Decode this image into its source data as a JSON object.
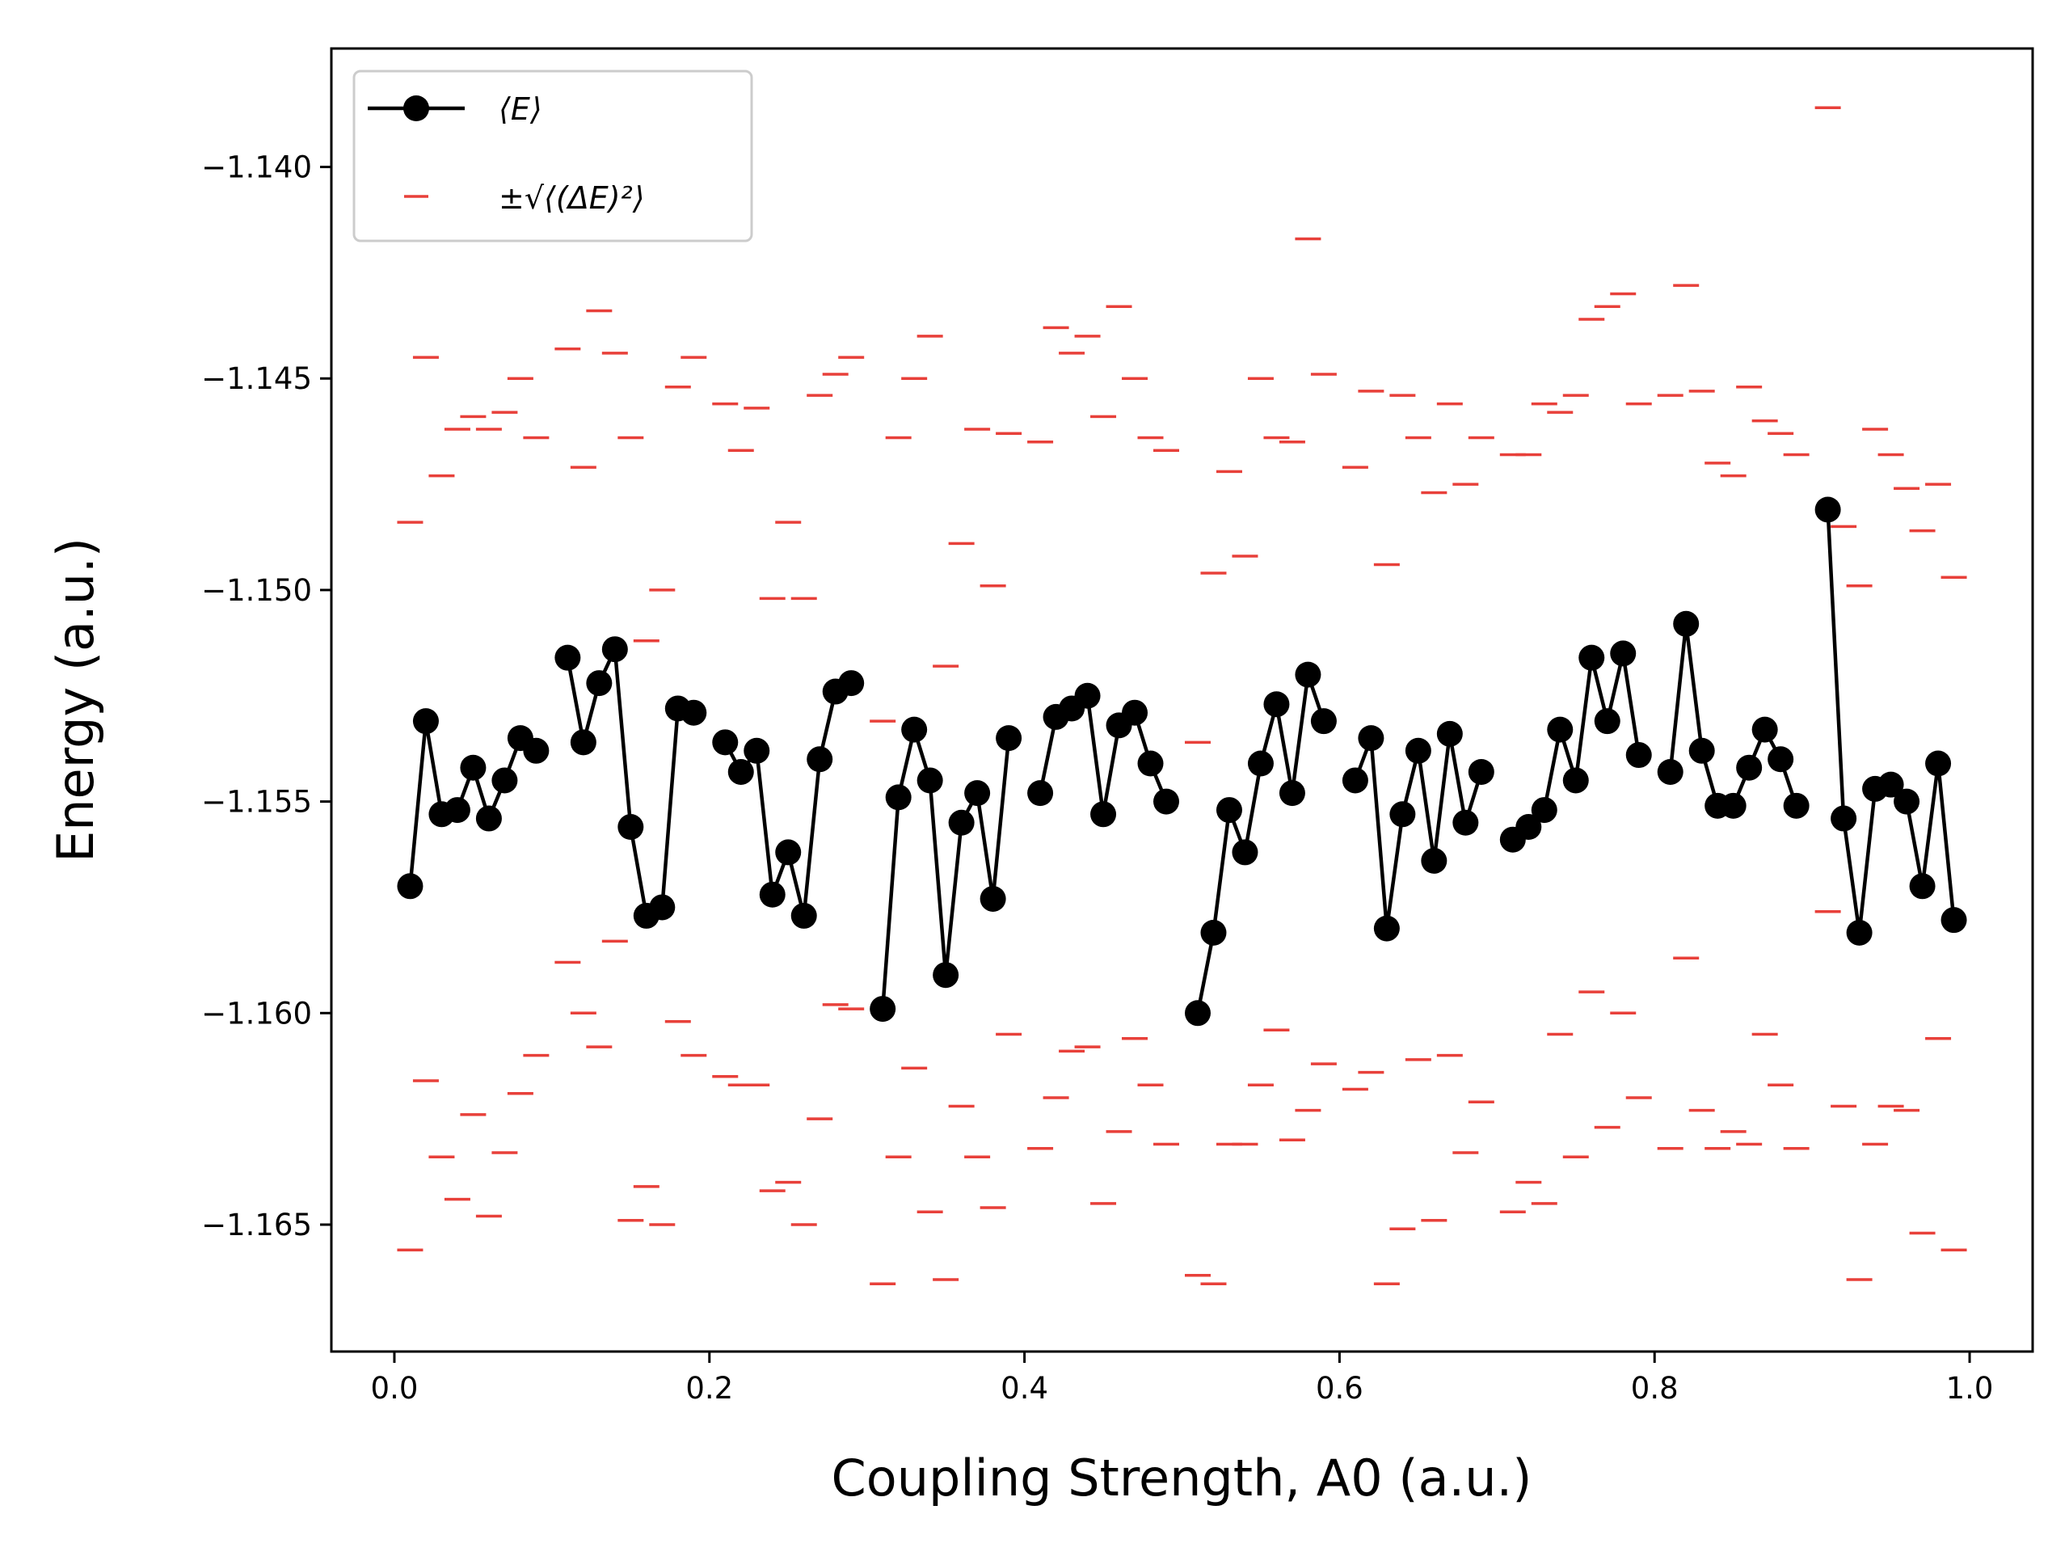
{
  "chart_data": {
    "type": "line",
    "xlabel": "Coupling Strength, A0 (a.u.)",
    "ylabel": "Energy (a.u.)",
    "xlim": [
      -0.04,
      1.04
    ],
    "ylim": [
      -1.168,
      -1.1372
    ],
    "xticks": [
      0.0,
      0.2,
      0.4,
      0.6,
      0.8,
      1.0
    ],
    "xtick_labels": [
      "0.0",
      "0.2",
      "0.4",
      "0.6",
      "0.8",
      "1.0"
    ],
    "yticks": [
      -1.14,
      -1.145,
      -1.15,
      -1.155,
      -1.16,
      -1.165
    ],
    "ytick_labels": [
      "−1.140",
      "−1.145",
      "−1.150",
      "−1.155",
      "−1.160",
      "−1.165"
    ],
    "grid": false,
    "legend_position": "top-left",
    "colors": {
      "mean": "#000000",
      "band": "#e8403a"
    },
    "series": [
      {
        "name": "⟨E⟩",
        "style": "line-with-circle-markers",
        "points": [
          [
            0.01,
            -1.157
          ],
          [
            0.02,
            -1.1531
          ],
          [
            0.03,
            -1.1553
          ],
          [
            0.04,
            -1.1552
          ],
          [
            0.05,
            -1.1542
          ],
          [
            0.06,
            -1.1554
          ],
          [
            0.07,
            -1.1545
          ],
          [
            0.08,
            -1.1535
          ],
          [
            0.09,
            -1.1538
          ],
          [
            0.11,
            -1.1516
          ],
          [
            0.12,
            -1.1536
          ],
          [
            0.13,
            -1.1522
          ],
          [
            0.14,
            -1.1514
          ],
          [
            0.15,
            -1.1556
          ],
          [
            0.16,
            -1.1577
          ],
          [
            0.17,
            -1.1575
          ],
          [
            0.18,
            -1.1528
          ],
          [
            0.19,
            -1.1529
          ],
          [
            0.21,
            -1.1536
          ],
          [
            0.22,
            -1.1543
          ],
          [
            0.23,
            -1.1538
          ],
          [
            0.24,
            -1.1572
          ],
          [
            0.25,
            -1.1562
          ],
          [
            0.26,
            -1.1577
          ],
          [
            0.27,
            -1.154
          ],
          [
            0.28,
            -1.1524
          ],
          [
            0.29,
            -1.1522
          ],
          [
            0.31,
            -1.1599
          ],
          [
            0.32,
            -1.1549
          ],
          [
            0.33,
            -1.1533
          ],
          [
            0.34,
            -1.1545
          ],
          [
            0.35,
            -1.1591
          ],
          [
            0.36,
            -1.1555
          ],
          [
            0.37,
            -1.1548
          ],
          [
            0.38,
            -1.1573
          ],
          [
            0.39,
            -1.1535
          ],
          [
            0.41,
            -1.1548
          ],
          [
            0.42,
            -1.153
          ],
          [
            0.43,
            -1.1528
          ],
          [
            0.44,
            -1.1525
          ],
          [
            0.45,
            -1.1553
          ],
          [
            0.46,
            -1.1532
          ],
          [
            0.47,
            -1.1529
          ],
          [
            0.48,
            -1.1541
          ],
          [
            0.49,
            -1.155
          ],
          [
            0.51,
            -1.16
          ],
          [
            0.52,
            -1.1581
          ],
          [
            0.53,
            -1.1552
          ],
          [
            0.54,
            -1.1562
          ],
          [
            0.55,
            -1.1541
          ],
          [
            0.56,
            -1.1527
          ],
          [
            0.57,
            -1.1548
          ],
          [
            0.58,
            -1.152
          ],
          [
            0.59,
            -1.1531
          ],
          [
            0.61,
            -1.1545
          ],
          [
            0.62,
            -1.1535
          ],
          [
            0.63,
            -1.158
          ],
          [
            0.64,
            -1.1553
          ],
          [
            0.65,
            -1.1538
          ],
          [
            0.66,
            -1.1564
          ],
          [
            0.67,
            -1.1534
          ],
          [
            0.68,
            -1.1555
          ],
          [
            0.69,
            -1.1543
          ],
          [
            0.71,
            -1.1559
          ],
          [
            0.72,
            -1.1556
          ],
          [
            0.73,
            -1.1552
          ],
          [
            0.74,
            -1.1533
          ],
          [
            0.75,
            -1.1545
          ],
          [
            0.76,
            -1.1516
          ],
          [
            0.77,
            -1.1531
          ],
          [
            0.78,
            -1.1515
          ],
          [
            0.79,
            -1.1539
          ],
          [
            0.81,
            -1.1543
          ],
          [
            0.82,
            -1.1508
          ],
          [
            0.83,
            -1.1538
          ],
          [
            0.84,
            -1.1551
          ],
          [
            0.85,
            -1.1551
          ],
          [
            0.86,
            -1.1542
          ],
          [
            0.87,
            -1.1533
          ],
          [
            0.88,
            -1.154
          ],
          [
            0.89,
            -1.1551
          ],
          [
            0.91,
            -1.1481
          ],
          [
            0.92,
            -1.1554
          ],
          [
            0.93,
            -1.1581
          ],
          [
            0.94,
            -1.1547
          ],
          [
            0.95,
            -1.1546
          ],
          [
            0.96,
            -1.155
          ],
          [
            0.97,
            -1.157
          ],
          [
            0.98,
            -1.1541
          ],
          [
            0.99,
            -1.1578
          ]
        ]
      },
      {
        "name": "±√⟨(ΔE)²⟩",
        "style": "horizontal-dash-markers",
        "upper": [
          -1.1484,
          -1.1445,
          -1.1473,
          -1.1462,
          -1.1459,
          -1.1462,
          -1.1458,
          -1.145,
          -1.1464,
          -1.1443,
          -1.1471,
          -1.1434,
          -1.1444,
          -1.1464,
          -1.1512,
          -1.15,
          -1.1452,
          -1.1445,
          -1.1456,
          -1.1467,
          -1.1457,
          -1.1502,
          -1.1484,
          -1.1502,
          -1.1454,
          -1.1449,
          -1.1445,
          -1.1531,
          -1.1464,
          -1.145,
          -1.144,
          -1.1518,
          -1.1489,
          -1.1462,
          -1.1499,
          -1.1463,
          -1.1465,
          -1.1438,
          -1.1444,
          -1.144,
          -1.1459,
          -1.1433,
          -1.145,
          -1.1464,
          -1.1467,
          -1.1536,
          -1.1496,
          -1.1472,
          -1.1492,
          -1.145,
          -1.1464,
          -1.1465,
          -1.1417,
          -1.1449,
          -1.1471,
          -1.1453,
          -1.1494,
          -1.1454,
          -1.1464,
          -1.1477,
          -1.1456,
          -1.1475,
          -1.1464,
          -1.1468,
          -1.1468,
          -1.1456,
          -1.1458,
          -1.1454,
          -1.1436,
          -1.1433,
          -1.143,
          -1.1456,
          -1.1454,
          -1.1428,
          -1.1453,
          -1.147,
          -1.1473,
          -1.1452,
          -1.146,
          -1.1463,
          -1.1468,
          -1.1386,
          -1.1485,
          -1.1499,
          -1.1462,
          -1.1468,
          -1.1476,
          -1.1486,
          -1.1475,
          -1.1497
        ],
        "lower": [
          -1.1656,
          -1.1616,
          -1.1634,
          -1.1644,
          -1.1624,
          -1.1648,
          -1.1633,
          -1.1619,
          -1.161,
          -1.1588,
          -1.16,
          -1.1608,
          -1.1583,
          -1.1649,
          -1.1641,
          -1.165,
          -1.1602,
          -1.161,
          -1.1615,
          -1.1617,
          -1.1617,
          -1.1642,
          -1.164,
          -1.165,
          -1.1625,
          -1.1598,
          -1.1599,
          -1.1664,
          -1.1634,
          -1.1613,
          -1.1647,
          -1.1663,
          -1.1622,
          -1.1634,
          -1.1646,
          -1.1605,
          -1.1632,
          -1.162,
          -1.1609,
          -1.1608,
          -1.1645,
          -1.1628,
          -1.1606,
          -1.1617,
          -1.1631,
          -1.1662,
          -1.1664,
          -1.1631,
          -1.1631,
          -1.1617,
          -1.1604,
          -1.163,
          -1.1623,
          -1.1612,
          -1.1618,
          -1.1614,
          -1.1664,
          -1.1651,
          -1.1611,
          -1.1649,
          -1.161,
          -1.1633,
          -1.1621,
          -1.1647,
          -1.164,
          -1.1645,
          -1.1605,
          -1.1634,
          -1.1595,
          -1.1627,
          -1.16,
          -1.162,
          -1.1632,
          -1.1587,
          -1.1623,
          -1.1632,
          -1.1628,
          -1.1631,
          -1.1605,
          -1.1617,
          -1.1632,
          -1.1576,
          -1.1622,
          -1.1663,
          -1.1631,
          -1.1622,
          -1.1623,
          -1.1652,
          -1.1606,
          -1.1656
        ]
      }
    ]
  }
}
